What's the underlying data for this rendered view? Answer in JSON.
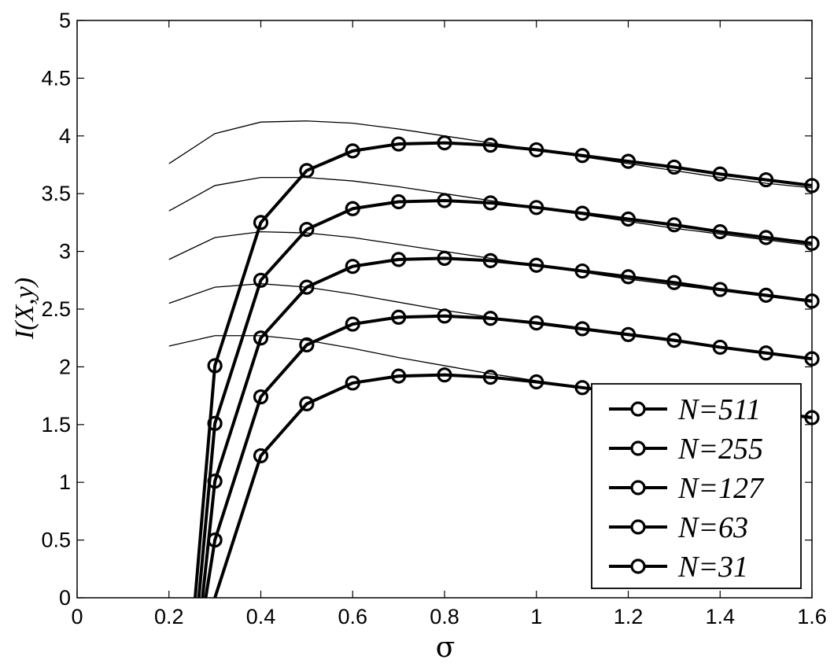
{
  "chart_data": {
    "type": "line",
    "xlabel": "σ",
    "ylabel": "I(X,y)",
    "xlim": [
      0,
      1.6
    ],
    "ylim": [
      0,
      5
    ],
    "xticks": [
      0,
      0.2,
      0.4,
      0.6,
      0.8,
      1,
      1.2,
      1.4,
      1.6
    ],
    "xtick_labels": [
      "0",
      "0.2",
      "0.4",
      "0.6",
      "0.8",
      "1",
      "1.2",
      "1.4",
      "1.6"
    ],
    "yticks": [
      0,
      0.5,
      1,
      1.5,
      2,
      2.5,
      3,
      3.5,
      4,
      4.5,
      5
    ],
    "ytick_labels": [
      "0",
      "0.5",
      "1",
      "1.5",
      "2",
      "2.5",
      "3",
      "3.5",
      "4",
      "4.5",
      "5"
    ],
    "grid": false,
    "legend_position": "bottom-right",
    "series": [
      {
        "name": "N=511",
        "x": [
          0.257,
          0.3,
          0.4,
          0.5,
          0.6,
          0.7,
          0.8,
          0.9,
          1.0,
          1.1,
          1.2,
          1.3,
          1.4,
          1.5,
          1.6
        ],
        "y": [
          0,
          2.01,
          3.25,
          3.7,
          3.87,
          3.93,
          3.94,
          3.92,
          3.88,
          3.83,
          3.78,
          3.73,
          3.67,
          3.62,
          3.57
        ],
        "markers": [
          false,
          true,
          true,
          true,
          true,
          true,
          true,
          true,
          true,
          true,
          true,
          true,
          true,
          true,
          true
        ]
      },
      {
        "name": "N=255",
        "x": [
          0.265,
          0.3,
          0.4,
          0.5,
          0.6,
          0.7,
          0.8,
          0.9,
          1.0,
          1.1,
          1.2,
          1.3,
          1.4,
          1.5,
          1.6
        ],
        "y": [
          0,
          1.51,
          2.75,
          3.19,
          3.37,
          3.43,
          3.44,
          3.42,
          3.38,
          3.33,
          3.28,
          3.23,
          3.17,
          3.12,
          3.07
        ],
        "markers": [
          false,
          true,
          true,
          true,
          true,
          true,
          true,
          true,
          true,
          true,
          true,
          true,
          true,
          true,
          true
        ]
      },
      {
        "name": "N=127",
        "x": [
          0.273,
          0.3,
          0.4,
          0.5,
          0.6,
          0.7,
          0.8,
          0.9,
          1.0,
          1.1,
          1.2,
          1.3,
          1.4,
          1.5,
          1.6
        ],
        "y": [
          0,
          1.01,
          2.25,
          2.69,
          2.87,
          2.93,
          2.94,
          2.92,
          2.88,
          2.83,
          2.78,
          2.73,
          2.67,
          2.62,
          2.57
        ],
        "markers": [
          false,
          true,
          true,
          true,
          true,
          true,
          true,
          true,
          true,
          true,
          true,
          true,
          true,
          true,
          true
        ]
      },
      {
        "name": "N=63",
        "x": [
          0.28,
          0.3,
          0.4,
          0.5,
          0.6,
          0.7,
          0.8,
          0.9,
          1.0,
          1.1,
          1.2,
          1.3,
          1.4,
          1.5,
          1.6
        ],
        "y": [
          0,
          0.5,
          1.74,
          2.19,
          2.37,
          2.43,
          2.44,
          2.42,
          2.38,
          2.33,
          2.28,
          2.23,
          2.17,
          2.12,
          2.07
        ],
        "markers": [
          false,
          true,
          true,
          true,
          true,
          true,
          true,
          true,
          true,
          true,
          true,
          true,
          true,
          true,
          true
        ]
      },
      {
        "name": "N=31",
        "x": [
          0.3,
          0.4,
          0.5,
          0.6,
          0.7,
          0.8,
          0.9,
          1.0,
          1.1,
          1.2,
          1.3,
          1.4,
          1.5,
          1.6
        ],
        "y": [
          0,
          1.23,
          1.68,
          1.86,
          1.92,
          1.93,
          1.91,
          1.87,
          1.82,
          1.77,
          1.71,
          1.66,
          1.61,
          1.56
        ],
        "markers": [
          false,
          true,
          true,
          true,
          true,
          true,
          true,
          true,
          true,
          true,
          true,
          true,
          true,
          true
        ]
      }
    ],
    "reference_series": [
      {
        "x": [
          0.2,
          0.3,
          0.4,
          0.5,
          0.6,
          0.7,
          0.8,
          0.9,
          1.0,
          1.1,
          1.2,
          1.3,
          1.4,
          1.5,
          1.6
        ],
        "y": [
          3.76,
          4.02,
          4.12,
          4.13,
          4.11,
          4.06,
          4.0,
          3.94,
          3.88,
          3.82,
          3.76,
          3.7,
          3.64,
          3.59,
          3.55
        ]
      },
      {
        "x": [
          0.2,
          0.3,
          0.4,
          0.5,
          0.6,
          0.7,
          0.8,
          0.9,
          1.0,
          1.1,
          1.2,
          1.3,
          1.4,
          1.5,
          1.6
        ],
        "y": [
          3.35,
          3.57,
          3.64,
          3.64,
          3.61,
          3.56,
          3.5,
          3.44,
          3.38,
          3.32,
          3.26,
          3.2,
          3.15,
          3.1,
          3.05
        ]
      },
      {
        "x": [
          0.2,
          0.3,
          0.4,
          0.5,
          0.6,
          0.7,
          0.8,
          0.9,
          1.0,
          1.1,
          1.2,
          1.3,
          1.4,
          1.5,
          1.6
        ],
        "y": [
          2.93,
          3.12,
          3.17,
          3.16,
          3.12,
          3.06,
          3.0,
          2.94,
          2.88,
          2.82,
          2.76,
          2.71,
          2.66,
          2.61,
          2.56
        ]
      },
      {
        "x": [
          0.2,
          0.3,
          0.4,
          0.5,
          0.6,
          0.7,
          0.8,
          0.9,
          1.0,
          1.1,
          1.2,
          1.3,
          1.4,
          1.5,
          1.6
        ],
        "y": [
          2.55,
          2.69,
          2.72,
          2.69,
          2.63,
          2.56,
          2.49,
          2.43,
          2.37,
          2.32,
          2.27,
          2.22,
          2.17,
          2.12,
          2.07
        ]
      },
      {
        "x": [
          0.2,
          0.3,
          0.4,
          0.5,
          0.6,
          0.7,
          0.8,
          0.9,
          1.0,
          1.1,
          1.2,
          1.3,
          1.4,
          1.5,
          1.6
        ],
        "y": [
          2.18,
          2.27,
          2.27,
          2.23,
          2.16,
          2.08,
          2.01,
          1.94,
          1.88,
          1.82,
          1.77,
          1.72,
          1.67,
          1.62,
          1.57
        ]
      }
    ],
    "colors": {
      "line": "#000000",
      "background": "#ffffff"
    }
  }
}
